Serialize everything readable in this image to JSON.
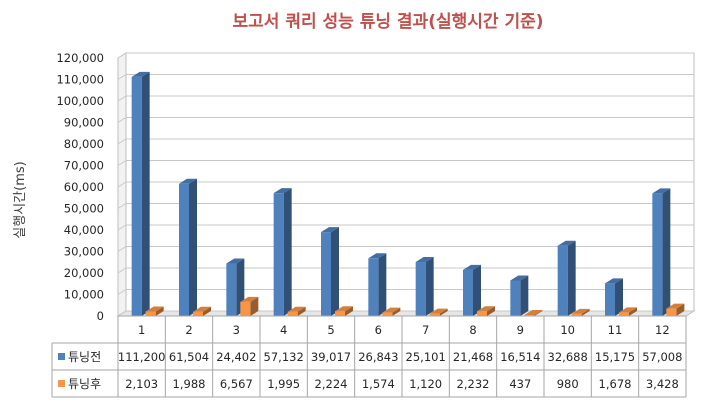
{
  "chart_data": {
    "type": "bar",
    "title": "보고서 쿼리 성능 튜닝 결과(실행시간 기준)",
    "ylabel": "실행시간(ms)",
    "xlabel": "",
    "ylim": [
      0,
      120000
    ],
    "yticks": [
      "0",
      "10,000",
      "20,000",
      "30,000",
      "40,000",
      "50,000",
      "60,000",
      "70,000",
      "80,000",
      "90,000",
      "100,000",
      "110,000",
      "120,000"
    ],
    "categories": [
      "1",
      "2",
      "3",
      "4",
      "5",
      "6",
      "7",
      "8",
      "9",
      "10",
      "11",
      "12"
    ],
    "series": [
      {
        "name": "튜닝전",
        "color": "#4F81BD",
        "values": [
          111200,
          61504,
          24402,
          57132,
          39017,
          26843,
          25101,
          21468,
          16514,
          32688,
          15175,
          57008
        ],
        "labels": [
          "111,200",
          "61,504",
          "24,402",
          "57,132",
          "39,017",
          "26,843",
          "25,101",
          "21,468",
          "16,514",
          "32,688",
          "15,175",
          "57,008"
        ]
      },
      {
        "name": "튜닝후",
        "color": "#F79646",
        "values": [
          2103,
          1988,
          6567,
          1995,
          2224,
          1574,
          1120,
          2232,
          437,
          980,
          1678,
          3428
        ],
        "labels": [
          "2,103",
          "1,988",
          "6,567",
          "1,995",
          "2,224",
          "1,574",
          "1,120",
          "2,232",
          "437",
          "980",
          "1,678",
          "3,428"
        ]
      }
    ],
    "grid": true,
    "legend": "data-table",
    "style": "3d-column"
  }
}
